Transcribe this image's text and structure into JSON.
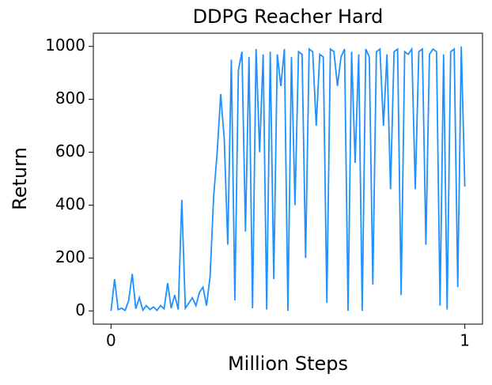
{
  "chart_data": {
    "type": "line",
    "title": "DDPG Reacher Hard",
    "x_label": "Million Steps",
    "y_label": "Return",
    "x": [
      0,
      0.01,
      0.02,
      0.03,
      0.04,
      0.05,
      0.06,
      0.07,
      0.08,
      0.09,
      0.1,
      0.11,
      0.12,
      0.13,
      0.14,
      0.15,
      0.16,
      0.17,
      0.18,
      0.19,
      0.2,
      0.21,
      0.22,
      0.23,
      0.24,
      0.25,
      0.26,
      0.27,
      0.28,
      0.29,
      0.3,
      0.31,
      0.32,
      0.33,
      0.34,
      0.35,
      0.36,
      0.37,
      0.38,
      0.39,
      0.4,
      0.41,
      0.42,
      0.43,
      0.44,
      0.45,
      0.46,
      0.47,
      0.48,
      0.49,
      0.5,
      0.51,
      0.52,
      0.53,
      0.54,
      0.55,
      0.56,
      0.57,
      0.58,
      0.59,
      0.6,
      0.61,
      0.62,
      0.63,
      0.64,
      0.65,
      0.66,
      0.67,
      0.68,
      0.69,
      0.7,
      0.71,
      0.72,
      0.73,
      0.74,
      0.75,
      0.76,
      0.77,
      0.78,
      0.79,
      0.8,
      0.81,
      0.82,
      0.83,
      0.84,
      0.85,
      0.86,
      0.87,
      0.88,
      0.89,
      0.9,
      0.91,
      0.92,
      0.93,
      0.94,
      0.95,
      0.96,
      0.97,
      0.98,
      0.99,
      1
    ],
    "series": [
      {
        "color": "#1e90ff",
        "values": [
          0,
          120,
          5,
          10,
          2,
          40,
          140,
          8,
          50,
          3,
          20,
          5,
          15,
          2,
          20,
          8,
          105,
          10,
          60,
          5,
          420,
          10,
          30,
          50,
          20,
          70,
          90,
          20,
          130,
          430,
          600,
          820,
          650,
          250,
          950,
          40,
          910,
          980,
          300,
          960,
          10,
          990,
          600,
          970,
          5,
          980,
          120,
          970,
          850,
          990,
          0,
          960,
          400,
          980,
          970,
          200,
          990,
          980,
          700,
          970,
          960,
          30,
          990,
          980,
          850,
          960,
          990,
          0,
          980,
          560,
          970,
          0,
          990,
          960,
          100,
          980,
          990,
          700,
          970,
          460,
          980,
          990,
          60,
          980,
          970,
          990,
          460,
          980,
          990,
          250,
          970,
          990,
          980,
          20,
          970,
          5,
          980,
          990,
          90,
          1000,
          470
        ]
      }
    ],
    "xlim": [
      -0.05,
      1.05
    ],
    "ylim": [
      -50,
      1050
    ],
    "xticks": [
      0,
      1
    ],
    "yticks": [
      0,
      200,
      400,
      600,
      800,
      1000
    ]
  }
}
